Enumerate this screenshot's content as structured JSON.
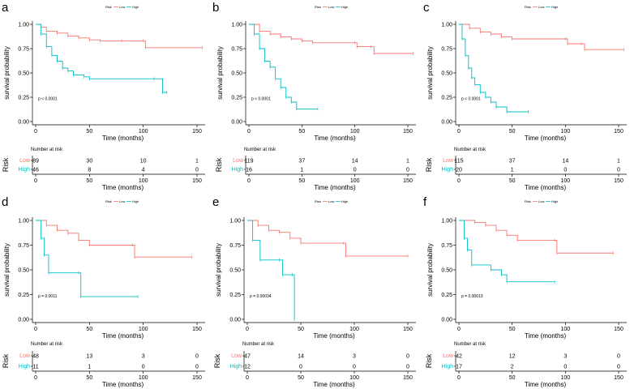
{
  "figure": {
    "legend_title": "Risk",
    "legend_low": "Low",
    "legend_high": "High",
    "risk_table_title": "Number at risk",
    "risk_axis_label": "Risk",
    "colors": {
      "low": "#F8766D",
      "high": "#00BFC4",
      "axis": "#000000"
    }
  },
  "chart_data": [
    {
      "panel": "a",
      "type": "line",
      "xlabel": "Time (months)",
      "ylabel": "survival probability",
      "xlim": [
        0,
        150
      ],
      "ylim": [
        0,
        1
      ],
      "xticks": [
        0,
        50,
        100,
        150
      ],
      "yticks": [
        "0.00",
        "0.25",
        "0.50",
        "0.75",
        "1.00"
      ],
      "pvalue": "p < 0.0001",
      "series": [
        {
          "name": "Low",
          "points": [
            [
              0,
              1.0
            ],
            [
              5,
              0.97
            ],
            [
              10,
              0.93
            ],
            [
              20,
              0.91
            ],
            [
              30,
              0.88
            ],
            [
              40,
              0.86
            ],
            [
              50,
              0.84
            ],
            [
              60,
              0.83
            ],
            [
              80,
              0.83
            ],
            [
              100,
              0.83
            ],
            [
              102,
              0.76
            ],
            [
              155,
              0.76
            ]
          ]
        },
        {
          "name": "High",
          "points": [
            [
              0,
              1.0
            ],
            [
              5,
              0.9
            ],
            [
              10,
              0.77
            ],
            [
              15,
              0.68
            ],
            [
              20,
              0.62
            ],
            [
              25,
              0.55
            ],
            [
              30,
              0.52
            ],
            [
              35,
              0.48
            ],
            [
              45,
              0.46
            ],
            [
              50,
              0.44
            ],
            [
              110,
              0.44
            ],
            [
              118,
              0.3
            ],
            [
              122,
              0.3
            ]
          ]
        }
      ],
      "risk_table": {
        "times": [
          0,
          50,
          100,
          150
        ],
        "Low": [
          "89",
          "30",
          "10",
          "1"
        ],
        "High": [
          "46",
          "8",
          "4",
          "0"
        ]
      }
    },
    {
      "panel": "b",
      "type": "line",
      "xlabel": "Time (months)",
      "ylabel": "survival probability",
      "xlim": [
        0,
        150
      ],
      "ylim": [
        0,
        1
      ],
      "xticks": [
        0,
        50,
        100,
        150
      ],
      "yticks": [
        "0.00",
        "0.25",
        "0.50",
        "0.75",
        "1.00"
      ],
      "pvalue": "p < 0.0001",
      "series": [
        {
          "name": "Low",
          "points": [
            [
              0,
              1.0
            ],
            [
              10,
              0.93
            ],
            [
              20,
              0.9
            ],
            [
              30,
              0.87
            ],
            [
              40,
              0.85
            ],
            [
              50,
              0.83
            ],
            [
              60,
              0.81
            ],
            [
              100,
              0.81
            ],
            [
              102,
              0.77
            ],
            [
              115,
              0.77
            ],
            [
              118,
              0.7
            ],
            [
              155,
              0.7
            ]
          ]
        },
        {
          "name": "High",
          "points": [
            [
              0,
              1.0
            ],
            [
              5,
              0.9
            ],
            [
              10,
              0.75
            ],
            [
              15,
              0.62
            ],
            [
              20,
              0.56
            ],
            [
              25,
              0.44
            ],
            [
              30,
              0.35
            ],
            [
              35,
              0.25
            ],
            [
              40,
              0.2
            ],
            [
              45,
              0.13
            ],
            [
              65,
              0.13
            ]
          ]
        }
      ],
      "risk_table": {
        "times": [
          0,
          50,
          100,
          150
        ],
        "Low": [
          "119",
          "37",
          "14",
          "1"
        ],
        "High": [
          "16",
          "1",
          "0",
          "0"
        ]
      }
    },
    {
      "panel": "c",
      "type": "line",
      "xlabel": "Time (months)",
      "ylabel": "survival probability",
      "xlim": [
        0,
        150
      ],
      "ylim": [
        0,
        1
      ],
      "xticks": [
        0,
        50,
        100,
        150
      ],
      "yticks": [
        "0.00",
        "0.25",
        "0.50",
        "0.75",
        "1.00"
      ],
      "pvalue": "p < 0.0001",
      "series": [
        {
          "name": "Low",
          "points": [
            [
              0,
              1.0
            ],
            [
              10,
              0.96
            ],
            [
              20,
              0.92
            ],
            [
              30,
              0.9
            ],
            [
              40,
              0.87
            ],
            [
              50,
              0.85
            ],
            [
              100,
              0.85
            ],
            [
              102,
              0.8
            ],
            [
              115,
              0.8
            ],
            [
              118,
              0.74
            ],
            [
              155,
              0.74
            ]
          ]
        },
        {
          "name": "High",
          "points": [
            [
              0,
              1.0
            ],
            [
              3,
              0.85
            ],
            [
              6,
              0.68
            ],
            [
              9,
              0.55
            ],
            [
              12,
              0.45
            ],
            [
              15,
              0.38
            ],
            [
              20,
              0.3
            ],
            [
              25,
              0.25
            ],
            [
              30,
              0.2
            ],
            [
              35,
              0.15
            ],
            [
              45,
              0.1
            ],
            [
              65,
              0.1
            ]
          ]
        }
      ],
      "risk_table": {
        "times": [
          0,
          50,
          100,
          150
        ],
        "Low": [
          "115",
          "37",
          "14",
          "1"
        ],
        "High": [
          "20",
          "1",
          "0",
          "0"
        ]
      }
    },
    {
      "panel": "d",
      "type": "line",
      "xlabel": "Time (months)",
      "ylabel": "survival probability",
      "xlim": [
        0,
        150
      ],
      "ylim": [
        0,
        1
      ],
      "xticks": [
        0,
        50,
        100,
        150
      ],
      "yticks": [
        "0.00",
        "0.25",
        "0.50",
        "0.75",
        "1.00"
      ],
      "pvalue": "p = 0.0011",
      "series": [
        {
          "name": "Low",
          "points": [
            [
              0,
              1.0
            ],
            [
              10,
              0.95
            ],
            [
              20,
              0.9
            ],
            [
              30,
              0.87
            ],
            [
              40,
              0.8
            ],
            [
              50,
              0.75
            ],
            [
              90,
              0.75
            ],
            [
              92,
              0.63
            ],
            [
              145,
              0.63
            ]
          ]
        },
        {
          "name": "High",
          "points": [
            [
              0,
              1.0
            ],
            [
              5,
              0.82
            ],
            [
              8,
              0.65
            ],
            [
              12,
              0.47
            ],
            [
              40,
              0.47
            ],
            [
              42,
              0.23
            ],
            [
              95,
              0.23
            ]
          ]
        }
      ],
      "risk_table": {
        "times": [
          0,
          50,
          100,
          150
        ],
        "Low": [
          "48",
          "13",
          "3",
          "0"
        ],
        "High": [
          "11",
          "1",
          "0",
          "0"
        ]
      }
    },
    {
      "panel": "e",
      "type": "line",
      "xlabel": "Time (months)",
      "ylabel": "survival probability",
      "xlim": [
        0,
        150
      ],
      "ylim": [
        0,
        1
      ],
      "xticks": [
        0,
        50,
        100,
        150
      ],
      "yticks": [
        "0.00",
        "0.25",
        "0.50",
        "0.75",
        "1.00"
      ],
      "pvalue": "p = 0.00034",
      "series": [
        {
          "name": "Low",
          "points": [
            [
              0,
              1.0
            ],
            [
              10,
              0.95
            ],
            [
              20,
              0.9
            ],
            [
              30,
              0.88
            ],
            [
              40,
              0.82
            ],
            [
              50,
              0.77
            ],
            [
              90,
              0.77
            ],
            [
              92,
              0.64
            ],
            [
              150,
              0.64
            ]
          ]
        },
        {
          "name": "High",
          "points": [
            [
              0,
              1.0
            ],
            [
              5,
              0.8
            ],
            [
              12,
              0.6
            ],
            [
              30,
              0.6
            ],
            [
              33,
              0.45
            ],
            [
              42,
              0.45
            ],
            [
              44,
              0.0
            ]
          ]
        }
      ],
      "risk_table": {
        "times": [
          0,
          50,
          100,
          150
        ],
        "Low": [
          "47",
          "14",
          "3",
          "0"
        ],
        "High": [
          "12",
          "0",
          "0",
          "0"
        ]
      }
    },
    {
      "panel": "f",
      "type": "line",
      "xlabel": "Time (months)",
      "ylabel": "survival probability",
      "xlim": [
        0,
        150
      ],
      "ylim": [
        0,
        1
      ],
      "xticks": [
        0,
        50,
        100,
        150
      ],
      "yticks": [
        "0.00",
        "0.25",
        "0.50",
        "0.75",
        "1.00"
      ],
      "pvalue": "p = 0.00013",
      "series": [
        {
          "name": "Low",
          "points": [
            [
              0,
              1.0
            ],
            [
              15,
              0.98
            ],
            [
              25,
              0.95
            ],
            [
              35,
              0.9
            ],
            [
              45,
              0.85
            ],
            [
              55,
              0.8
            ],
            [
              90,
              0.8
            ],
            [
              92,
              0.67
            ],
            [
              145,
              0.67
            ]
          ]
        },
        {
          "name": "High",
          "points": [
            [
              0,
              1.0
            ],
            [
              5,
              0.82
            ],
            [
              8,
              0.7
            ],
            [
              12,
              0.55
            ],
            [
              30,
              0.5
            ],
            [
              40,
              0.45
            ],
            [
              45,
              0.38
            ],
            [
              90,
              0.38
            ]
          ]
        }
      ],
      "risk_table": {
        "times": [
          0,
          50,
          100,
          150
        ],
        "Low": [
          "42",
          "12",
          "3",
          "0"
        ],
        "High": [
          "17",
          "2",
          "0",
          "0"
        ]
      }
    }
  ]
}
